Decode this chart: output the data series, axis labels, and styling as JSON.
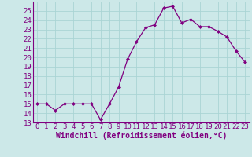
{
  "x": [
    0,
    1,
    2,
    3,
    4,
    5,
    6,
    7,
    8,
    9,
    10,
    11,
    12,
    13,
    14,
    15,
    16,
    17,
    18,
    19,
    20,
    21,
    22,
    23
  ],
  "y": [
    15.0,
    15.0,
    14.3,
    15.0,
    15.0,
    15.0,
    15.0,
    13.3,
    15.0,
    16.8,
    19.8,
    21.7,
    23.2,
    23.5,
    25.3,
    25.5,
    23.7,
    24.1,
    23.3,
    23.3,
    22.8,
    22.2,
    20.7,
    19.5
  ],
  "line_color": "#800080",
  "marker": "D",
  "marker_size": 2.0,
  "bg_color": "#cce8e8",
  "grid_color": "#aad4d4",
  "xlabel": "Windchill (Refroidissement éolien,°C)",
  "ylim": [
    13,
    26
  ],
  "xlim_min": -0.5,
  "xlim_max": 23.5,
  "yticks": [
    13,
    14,
    15,
    16,
    17,
    18,
    19,
    20,
    21,
    22,
    23,
    24,
    25
  ],
  "xticks": [
    0,
    1,
    2,
    3,
    4,
    5,
    6,
    7,
    8,
    9,
    10,
    11,
    12,
    13,
    14,
    15,
    16,
    17,
    18,
    19,
    20,
    21,
    22,
    23
  ],
  "tick_color": "#800080",
  "label_color": "#800080",
  "axis_color": "#800080",
  "font_size": 6.5,
  "xlabel_font_size": 7.0,
  "line_width": 0.9
}
